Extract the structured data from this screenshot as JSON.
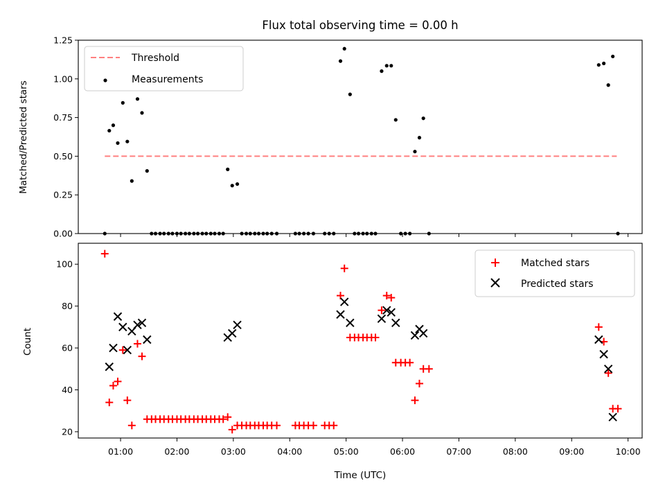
{
  "chart_data": [
    {
      "type": "scatter",
      "title": "Flux total observing time = 0.00 h",
      "xlabel": "",
      "ylabel": "Matched/Predicted stars",
      "xlim": [
        0.25,
        10.25
      ],
      "ylim": [
        0,
        1.25
      ],
      "yticks": [
        "0.00",
        "0.25",
        "0.50",
        "0.75",
        "1.00",
        "1.25"
      ],
      "grid": false,
      "legend_position": "top-left",
      "threshold": {
        "name": "Threshold",
        "y": 0.5,
        "x_range": [
          0.72,
          9.8
        ],
        "color": "#ff7f7f"
      },
      "series": [
        {
          "name": "Measurements",
          "color": "#000000",
          "marker": "dot",
          "points": [
            [
              0.72,
              0.0
            ],
            [
              0.8,
              0.665
            ],
            [
              0.87,
              0.7
            ],
            [
              0.95,
              0.585
            ],
            [
              1.04,
              0.845
            ],
            [
              1.12,
              0.595
            ],
            [
              1.2,
              0.34
            ],
            [
              1.3,
              0.87
            ],
            [
              1.38,
              0.78
            ],
            [
              1.47,
              0.405
            ],
            [
              1.55,
              0.0
            ],
            [
              1.62,
              0.0
            ],
            [
              1.7,
              0.0
            ],
            [
              1.77,
              0.0
            ],
            [
              1.85,
              0.0
            ],
            [
              1.92,
              0.0
            ],
            [
              2.0,
              0.0
            ],
            [
              2.07,
              0.0
            ],
            [
              2.15,
              0.0
            ],
            [
              2.22,
              0.0
            ],
            [
              2.3,
              0.0
            ],
            [
              2.37,
              0.0
            ],
            [
              2.45,
              0.0
            ],
            [
              2.52,
              0.0
            ],
            [
              2.6,
              0.0
            ],
            [
              2.67,
              0.0
            ],
            [
              2.75,
              0.0
            ],
            [
              2.82,
              0.0
            ],
            [
              2.9,
              0.415
            ],
            [
              2.98,
              0.31
            ],
            [
              3.07,
              0.32
            ],
            [
              3.15,
              0.0
            ],
            [
              3.23,
              0.0
            ],
            [
              3.3,
              0.0
            ],
            [
              3.38,
              0.0
            ],
            [
              3.45,
              0.0
            ],
            [
              3.53,
              0.0
            ],
            [
              3.6,
              0.0
            ],
            [
              3.68,
              0.0
            ],
            [
              3.77,
              0.0
            ],
            [
              4.1,
              0.0
            ],
            [
              4.17,
              0.0
            ],
            [
              4.25,
              0.0
            ],
            [
              4.33,
              0.0
            ],
            [
              4.42,
              0.0
            ],
            [
              4.62,
              0.0
            ],
            [
              4.7,
              0.0
            ],
            [
              4.78,
              0.0
            ],
            [
              4.9,
              1.115
            ],
            [
              4.97,
              1.195
            ],
            [
              5.07,
              0.9
            ],
            [
              5.15,
              0.0
            ],
            [
              5.22,
              0.0
            ],
            [
              5.3,
              0.0
            ],
            [
              5.37,
              0.0
            ],
            [
              5.45,
              0.0
            ],
            [
              5.52,
              0.0
            ],
            [
              5.63,
              1.05
            ],
            [
              5.72,
              1.085
            ],
            [
              5.8,
              1.085
            ],
            [
              5.88,
              0.735
            ],
            [
              5.97,
              0.0
            ],
            [
              6.05,
              0.0
            ],
            [
              6.13,
              0.0
            ],
            [
              6.22,
              0.53
            ],
            [
              6.3,
              0.62
            ],
            [
              6.37,
              0.745
            ],
            [
              6.47,
              0.0
            ],
            [
              9.48,
              1.09
            ],
            [
              9.57,
              1.1
            ],
            [
              9.65,
              0.96
            ],
            [
              9.73,
              1.145
            ],
            [
              9.82,
              0.0
            ]
          ]
        }
      ]
    },
    {
      "type": "scatter",
      "title": "",
      "xlabel": "Time (UTC)",
      "ylabel": "Count",
      "xlim": [
        0.25,
        10.25
      ],
      "ylim": [
        17,
        110
      ],
      "xticks": [
        "01:00",
        "02:00",
        "03:00",
        "04:00",
        "05:00",
        "06:00",
        "07:00",
        "08:00",
        "09:00",
        "10:00"
      ],
      "yticks": [
        "20",
        "40",
        "60",
        "80",
        "100"
      ],
      "grid": false,
      "legend_position": "top-right",
      "series": [
        {
          "name": "Matched stars",
          "color": "#ff0000",
          "marker": "plus",
          "points": [
            [
              0.72,
              105
            ],
            [
              0.8,
              34
            ],
            [
              0.87,
              42
            ],
            [
              0.95,
              44
            ],
            [
              1.04,
              59
            ],
            [
              1.12,
              35
            ],
            [
              1.2,
              23
            ],
            [
              1.3,
              62
            ],
            [
              1.38,
              56
            ],
            [
              1.47,
              26
            ],
            [
              1.55,
              26
            ],
            [
              1.62,
              26
            ],
            [
              1.7,
              26
            ],
            [
              1.77,
              26
            ],
            [
              1.85,
              26
            ],
            [
              1.92,
              26
            ],
            [
              2.0,
              26
            ],
            [
              2.07,
              26
            ],
            [
              2.15,
              26
            ],
            [
              2.22,
              26
            ],
            [
              2.3,
              26
            ],
            [
              2.37,
              26
            ],
            [
              2.45,
              26
            ],
            [
              2.52,
              26
            ],
            [
              2.6,
              26
            ],
            [
              2.67,
              26
            ],
            [
              2.75,
              26
            ],
            [
              2.82,
              26
            ],
            [
              2.9,
              27
            ],
            [
              2.98,
              21
            ],
            [
              3.07,
              23
            ],
            [
              3.15,
              23
            ],
            [
              3.23,
              23
            ],
            [
              3.3,
              23
            ],
            [
              3.38,
              23
            ],
            [
              3.45,
              23
            ],
            [
              3.53,
              23
            ],
            [
              3.6,
              23
            ],
            [
              3.68,
              23
            ],
            [
              3.77,
              23
            ],
            [
              4.1,
              23
            ],
            [
              4.17,
              23
            ],
            [
              4.25,
              23
            ],
            [
              4.33,
              23
            ],
            [
              4.42,
              23
            ],
            [
              4.62,
              23
            ],
            [
              4.7,
              23
            ],
            [
              4.78,
              23
            ],
            [
              4.9,
              85
            ],
            [
              4.97,
              98
            ],
            [
              5.07,
              65
            ],
            [
              5.15,
              65
            ],
            [
              5.22,
              65
            ],
            [
              5.3,
              65
            ],
            [
              5.37,
              65
            ],
            [
              5.45,
              65
            ],
            [
              5.52,
              65
            ],
            [
              5.63,
              78
            ],
            [
              5.72,
              85
            ],
            [
              5.8,
              84
            ],
            [
              5.88,
              53
            ],
            [
              5.97,
              53
            ],
            [
              6.05,
              53
            ],
            [
              6.13,
              53
            ],
            [
              6.22,
              35
            ],
            [
              6.3,
              43
            ],
            [
              6.37,
              50
            ],
            [
              6.47,
              50
            ],
            [
              9.48,
              70
            ],
            [
              9.57,
              63
            ],
            [
              9.65,
              48
            ],
            [
              9.73,
              31
            ],
            [
              9.82,
              31
            ]
          ]
        },
        {
          "name": "Predicted stars",
          "color": "#000000",
          "marker": "x",
          "points": [
            [
              0.8,
              51
            ],
            [
              0.87,
              60
            ],
            [
              0.95,
              75
            ],
            [
              1.04,
              70
            ],
            [
              1.12,
              59
            ],
            [
              1.2,
              68
            ],
            [
              1.3,
              71
            ],
            [
              1.38,
              72
            ],
            [
              1.47,
              64
            ],
            [
              2.9,
              65
            ],
            [
              2.98,
              67
            ],
            [
              3.07,
              71
            ],
            [
              4.9,
              76
            ],
            [
              4.97,
              82
            ],
            [
              5.07,
              72
            ],
            [
              5.63,
              74
            ],
            [
              5.72,
              78
            ],
            [
              5.8,
              77
            ],
            [
              5.88,
              72
            ],
            [
              6.22,
              66
            ],
            [
              6.3,
              69
            ],
            [
              6.37,
              67
            ],
            [
              9.48,
              64
            ],
            [
              9.57,
              57
            ],
            [
              9.65,
              50
            ],
            [
              9.73,
              27
            ]
          ]
        }
      ]
    }
  ]
}
